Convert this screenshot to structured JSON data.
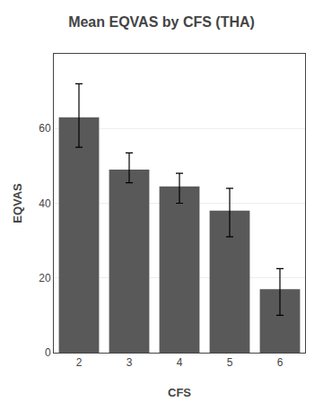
{
  "chart_data": {
    "type": "bar",
    "title": "Mean EQVAS by CFS (THA)",
    "xlabel": "CFS",
    "ylabel": "EQVAS",
    "categories": [
      "2",
      "3",
      "4",
      "5",
      "6"
    ],
    "values": [
      63.0,
      49.0,
      44.5,
      38.0,
      17.0
    ],
    "errors_upper": [
      9.0,
      4.5,
      3.5,
      6.0,
      5.5
    ],
    "errors_lower": [
      8.0,
      3.5,
      4.5,
      7.0,
      7.0
    ],
    "color": "#595959",
    "ylim": [
      0,
      80
    ],
    "yticks": [
      0,
      20,
      40,
      60
    ],
    "grid": true
  }
}
